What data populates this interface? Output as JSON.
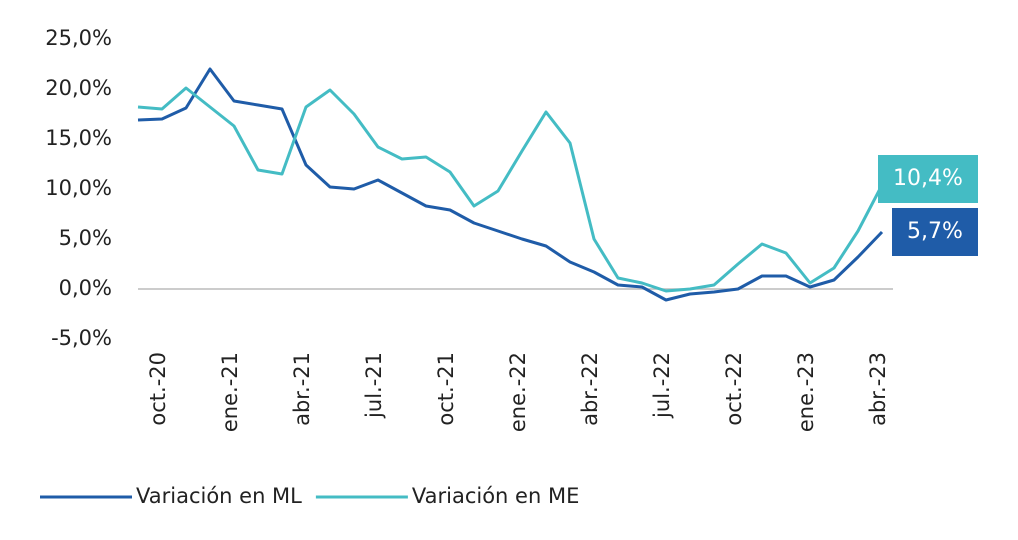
{
  "chart_data": {
    "type": "line",
    "categories": [
      null,
      "oct.-20",
      null,
      null,
      "ene.-21",
      null,
      null,
      "abr.-21",
      null,
      null,
      "jul.-21",
      null,
      null,
      "oct.-21",
      null,
      null,
      "ene.-22",
      null,
      null,
      "abr.-22",
      null,
      null,
      "jul.-22",
      null,
      null,
      "oct.-22",
      null,
      null,
      "ene.-23",
      null,
      null,
      "abr.-23"
    ],
    "series": [
      {
        "name": "Variación en ML",
        "color": "#1f5ca8",
        "values": [
          16.9,
          17.0,
          18.1,
          22.0,
          18.8,
          18.4,
          18.0,
          12.4,
          10.2,
          10.0,
          10.9,
          9.6,
          8.3,
          7.9,
          6.6,
          5.8,
          5.0,
          4.3,
          2.7,
          1.7,
          0.4,
          0.2,
          -1.1,
          -0.5,
          -0.3,
          0.0,
          1.3,
          1.3,
          0.2,
          0.9,
          3.2,
          5.7
        ],
        "value_labels": [
          null,
          null,
          null,
          null,
          null,
          null,
          null,
          null,
          null,
          null,
          null,
          null,
          null,
          null,
          null,
          null,
          null,
          null,
          null,
          null,
          null,
          null,
          null,
          null,
          null,
          null,
          null,
          null,
          null,
          null,
          null,
          "5,7%"
        ]
      },
      {
        "name": "Variación en ME",
        "color": "#44bcc4",
        "values": [
          18.2,
          18.0,
          20.1,
          18.2,
          16.3,
          11.9,
          11.5,
          18.2,
          19.9,
          17.5,
          14.2,
          13.0,
          13.2,
          11.7,
          8.3,
          9.8,
          13.8,
          17.7,
          14.6,
          5.0,
          1.1,
          0.6,
          -0.2,
          0.0,
          0.4,
          2.5,
          4.5,
          3.6,
          0.6,
          2.1,
          5.8,
          10.4
        ],
        "value_labels": [
          null,
          null,
          null,
          null,
          null,
          null,
          null,
          null,
          null,
          null,
          null,
          null,
          null,
          null,
          null,
          null,
          null,
          null,
          null,
          null,
          null,
          null,
          null,
          null,
          null,
          null,
          null,
          null,
          null,
          null,
          null,
          "10,4%"
        ]
      }
    ],
    "ylim": [
      -5,
      25
    ],
    "yticks": [
      {
        "value": -5,
        "label": "-5,0%"
      },
      {
        "value": 0,
        "label": "0,0%"
      },
      {
        "value": 5,
        "label": "5,0%"
      },
      {
        "value": 10,
        "label": "10,0%"
      },
      {
        "value": 15,
        "label": "15,0%"
      },
      {
        "value": 20,
        "label": "20,0%"
      },
      {
        "value": 25,
        "label": "25,0%"
      }
    ],
    "legend": "bottom"
  }
}
